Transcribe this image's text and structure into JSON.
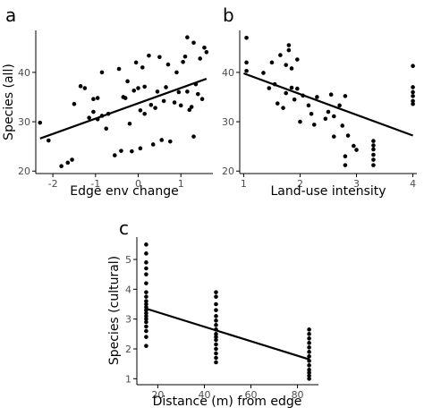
{
  "chart_data": [
    {
      "type": "scatter",
      "panel_label": "a",
      "xlabel": "Edge env change",
      "ylabel": "Species (all)",
      "xlim": [
        -2.4,
        1.75
      ],
      "ylim": [
        19.5,
        48.5
      ],
      "xticks": [
        -2,
        -1,
        0,
        1
      ],
      "xtick_labels": [
        "-2",
        "-1",
        "0",
        "1"
      ],
      "yticks": [
        20,
        30,
        40
      ],
      "ytick_labels": [
        "20",
        "30",
        "40"
      ],
      "grid": false,
      "fit_line": {
        "x": [
          -2.3,
          1.6
        ],
        "y": [
          26.6,
          38.7
        ]
      },
      "points": [
        [
          -2.3,
          29.8
        ],
        [
          -2.1,
          26.2
        ],
        [
          -1.8,
          21.0
        ],
        [
          -1.65,
          21.7
        ],
        [
          -1.55,
          22.3
        ],
        [
          -1.5,
          33.6
        ],
        [
          -1.35,
          37.2
        ],
        [
          -1.25,
          36.8
        ],
        [
          -1.15,
          30.8
        ],
        [
          -1.05,
          34.6
        ],
        [
          -1.05,
          32.0
        ],
        [
          -0.95,
          34.8
        ],
        [
          -0.95,
          30.5
        ],
        [
          -0.85,
          40.0
        ],
        [
          -0.85,
          31.2
        ],
        [
          -0.75,
          28.6
        ],
        [
          -0.7,
          31.6
        ],
        [
          -0.55,
          23.2
        ],
        [
          -0.45,
          40.7
        ],
        [
          -0.4,
          24.1
        ],
        [
          -0.35,
          35.0
        ],
        [
          -0.3,
          34.8
        ],
        [
          -0.25,
          38.2
        ],
        [
          -0.2,
          29.6
        ],
        [
          -0.15,
          24.0
        ],
        [
          -0.1,
          36.3
        ],
        [
          -0.05,
          42.0
        ],
        [
          0.0,
          36.8
        ],
        [
          0.05,
          24.6
        ],
        [
          0.05,
          32.3
        ],
        [
          0.1,
          41.0
        ],
        [
          0.15,
          37.1
        ],
        [
          0.15,
          31.6
        ],
        [
          0.25,
          43.4
        ],
        [
          0.3,
          33.4
        ],
        [
          0.35,
          25.4
        ],
        [
          0.4,
          32.8
        ],
        [
          0.45,
          36.1
        ],
        [
          0.5,
          43.1
        ],
        [
          0.55,
          26.3
        ],
        [
          0.6,
          34.2
        ],
        [
          0.65,
          37.0
        ],
        [
          0.7,
          41.6
        ],
        [
          0.75,
          26.0
        ],
        [
          0.85,
          33.9
        ],
        [
          0.9,
          40.0
        ],
        [
          0.95,
          36.0
        ],
        [
          1.0,
          33.3
        ],
        [
          1.05,
          42.1
        ],
        [
          1.1,
          43.2
        ],
        [
          1.15,
          36.1
        ],
        [
          1.15,
          47.1
        ],
        [
          1.2,
          32.4
        ],
        [
          1.25,
          33.0
        ],
        [
          1.3,
          27.0
        ],
        [
          1.3,
          46.0
        ],
        [
          1.35,
          37.6
        ],
        [
          1.4,
          35.6
        ],
        [
          1.45,
          42.8
        ],
        [
          1.5,
          34.6
        ],
        [
          1.55,
          45.0
        ],
        [
          1.6,
          44.1
        ]
      ]
    },
    {
      "type": "scatter",
      "panel_label": "b",
      "xlabel": "Land-use intensity",
      "ylabel": "",
      "xlim": [
        0.93,
        4.07
      ],
      "ylim": [
        19.5,
        48.5
      ],
      "xticks": [
        1,
        2,
        3,
        4
      ],
      "xtick_labels": [
        "1",
        "2",
        "3",
        "4"
      ],
      "yticks": [
        20,
        30,
        40
      ],
      "ytick_labels": [
        "20",
        "30",
        "40"
      ],
      "grid": false,
      "fit_line": {
        "x": [
          1.0,
          4.0
        ],
        "y": [
          39.8,
          27.2
        ]
      },
      "points": [
        [
          1.05,
          47.0
        ],
        [
          1.05,
          42.0
        ],
        [
          1.05,
          40.3
        ],
        [
          1.35,
          39.9
        ],
        [
          1.45,
          36.8
        ],
        [
          1.5,
          42.0
        ],
        [
          1.55,
          37.6
        ],
        [
          1.6,
          33.7
        ],
        [
          1.65,
          43.5
        ],
        [
          1.7,
          32.8
        ],
        [
          1.75,
          35.8
        ],
        [
          1.75,
          41.5
        ],
        [
          1.8,
          45.5
        ],
        [
          1.8,
          44.5
        ],
        [
          1.85,
          40.8
        ],
        [
          1.85,
          36.9
        ],
        [
          1.9,
          34.5
        ],
        [
          1.95,
          42.6
        ],
        [
          1.95,
          36.7
        ],
        [
          2.0,
          30.0
        ],
        [
          2.05,
          35.3
        ],
        [
          2.15,
          33.3
        ],
        [
          2.2,
          31.6
        ],
        [
          2.25,
          29.4
        ],
        [
          2.3,
          35.0
        ],
        [
          2.45,
          30.6
        ],
        [
          2.5,
          32.0
        ],
        [
          2.55,
          35.5
        ],
        [
          2.6,
          27.0
        ],
        [
          2.6,
          31.1
        ],
        [
          2.7,
          33.3
        ],
        [
          2.75,
          29.2
        ],
        [
          2.8,
          35.2
        ],
        [
          2.8,
          23.0
        ],
        [
          2.8,
          21.2
        ],
        [
          2.85,
          27.2
        ],
        [
          2.95,
          25.1
        ],
        [
          3.0,
          24.3
        ],
        [
          3.3,
          26.1
        ],
        [
          3.3,
          25.2
        ],
        [
          3.3,
          24.4
        ],
        [
          3.3,
          23.3
        ],
        [
          3.3,
          21.2
        ],
        [
          3.3,
          22.3
        ],
        [
          4.0,
          41.3
        ],
        [
          4.0,
          37.0
        ],
        [
          4.0,
          36.0
        ],
        [
          4.0,
          35.2
        ],
        [
          4.0,
          34.2
        ],
        [
          4.0,
          33.6
        ]
      ]
    },
    {
      "type": "scatter",
      "panel_label": "c",
      "xlabel": "Distance (m) from edge",
      "ylabel": "Species (cultural)",
      "xlim": [
        11,
        89
      ],
      "ylim": [
        0.8,
        5.75
      ],
      "xticks": [
        20,
        40,
        60,
        80
      ],
      "xtick_labels": [
        "20",
        "40",
        "60",
        "80"
      ],
      "yticks": [
        1,
        2,
        3,
        4,
        5
      ],
      "ytick_labels": [
        "1",
        "2",
        "3",
        "4",
        "5"
      ],
      "grid": false,
      "fit_line": {
        "x": [
          15,
          85
        ],
        "y": [
          3.35,
          1.65
        ]
      },
      "points": [
        [
          15,
          5.5
        ],
        [
          15,
          5.2
        ],
        [
          15,
          4.9
        ],
        [
          15,
          4.7
        ],
        [
          15,
          4.5
        ],
        [
          15,
          4.2
        ],
        [
          15,
          3.9
        ],
        [
          15,
          3.75
        ],
        [
          15,
          3.6
        ],
        [
          15,
          3.5
        ],
        [
          15,
          3.4
        ],
        [
          15,
          3.3
        ],
        [
          15,
          3.2
        ],
        [
          15,
          3.1
        ],
        [
          15,
          3.0
        ],
        [
          15,
          2.9
        ],
        [
          15,
          2.75
        ],
        [
          15,
          2.6
        ],
        [
          15,
          2.4
        ],
        [
          15,
          2.1
        ],
        [
          45,
          3.9
        ],
        [
          45,
          3.75
        ],
        [
          45,
          3.5
        ],
        [
          45,
          3.3
        ],
        [
          45,
          3.1
        ],
        [
          45,
          2.95
        ],
        [
          45,
          2.8
        ],
        [
          45,
          2.65
        ],
        [
          45,
          2.5
        ],
        [
          45,
          2.4
        ],
        [
          45,
          2.3
        ],
        [
          45,
          2.15
        ],
        [
          45,
          2.0
        ],
        [
          45,
          1.85
        ],
        [
          45,
          1.7
        ],
        [
          45,
          1.55
        ],
        [
          85,
          2.65
        ],
        [
          85,
          2.5
        ],
        [
          85,
          2.35
        ],
        [
          85,
          2.2
        ],
        [
          85,
          2.05
        ],
        [
          85,
          1.9
        ],
        [
          85,
          1.75
        ],
        [
          85,
          1.6
        ],
        [
          85,
          1.45
        ],
        [
          85,
          1.3
        ],
        [
          85,
          1.2
        ],
        [
          85,
          1.1
        ],
        [
          85,
          1.0
        ]
      ]
    }
  ]
}
